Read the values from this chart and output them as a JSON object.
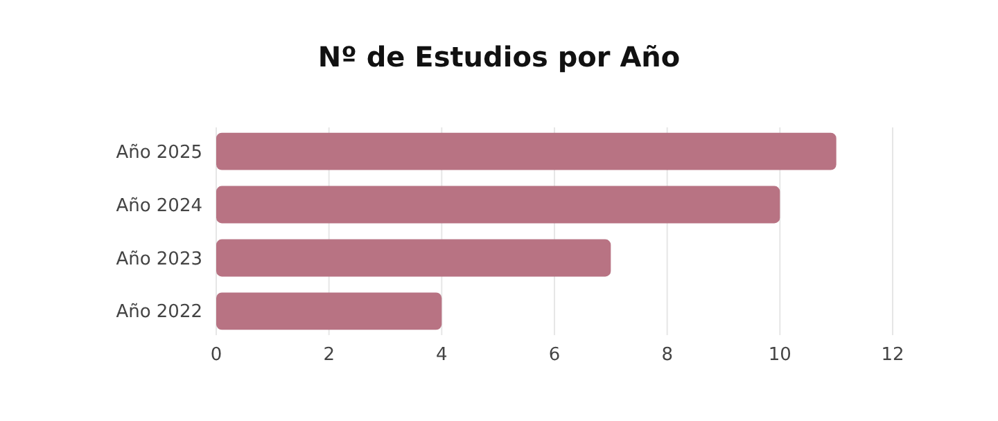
{
  "chart_data": {
    "type": "bar",
    "title": "Nº de Estudios por Año",
    "orientation": "horizontal",
    "categories": [
      "Año 2025",
      "Año 2024",
      "Año 2023",
      "Año 2022"
    ],
    "values": [
      11,
      10,
      7,
      4
    ],
    "color": "#b87383",
    "xlim": [
      0,
      12
    ],
    "xticks": [
      0,
      2,
      4,
      6,
      8,
      10,
      12
    ],
    "grid": "x"
  }
}
